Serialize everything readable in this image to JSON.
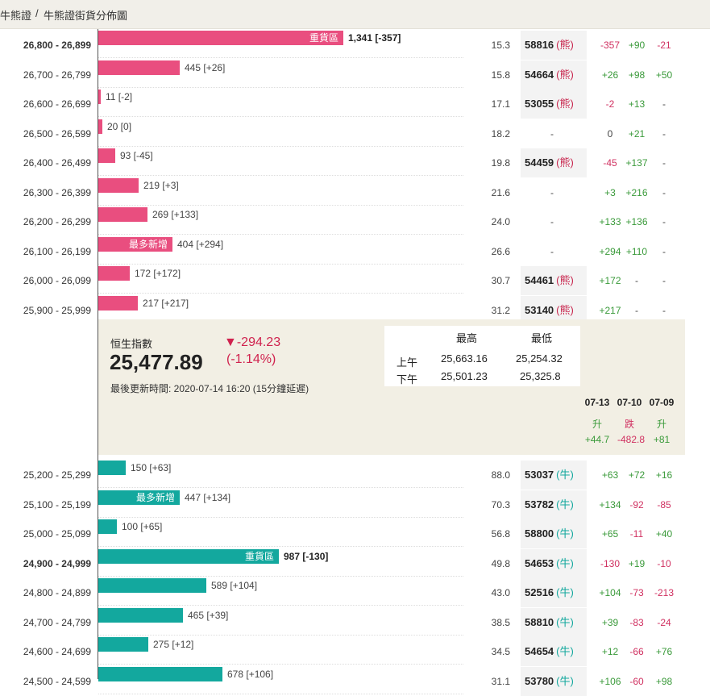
{
  "breadcrumb": {
    "part1": "牛熊證",
    "separator": "/",
    "part2": "牛熊證街貨分佈圖"
  },
  "bear_rows": [
    {
      "range": "26,800 - 26,899",
      "bold": true,
      "bar_label": "重貨區",
      "qty": "1,341 [-357]",
      "qty_bold": true,
      "bar_value": 1341,
      "pct": "15.3",
      "code": "58816",
      "type": "(熊)",
      "d1": "-357",
      "d2": "+90",
      "d3": "-21"
    },
    {
      "range": "26,700 - 26,799",
      "bold": false,
      "bar_label": "",
      "qty": "445 [+26]",
      "qty_bold": false,
      "bar_value": 445,
      "pct": "15.8",
      "code": "54664",
      "type": "(熊)",
      "d1": "+26",
      "d2": "+98",
      "d3": "+50"
    },
    {
      "range": "26,600 - 26,699",
      "bold": false,
      "bar_label": "",
      "qty": "11 [-2]",
      "qty_bold": false,
      "bar_value": 11,
      "pct": "17.1",
      "code": "53055",
      "type": "(熊)",
      "d1": "-2",
      "d2": "+13",
      "d3": "-"
    },
    {
      "range": "26,500 - 26,599",
      "bold": false,
      "bar_label": "",
      "qty": "20 [0]",
      "qty_bold": false,
      "bar_value": 20,
      "pct": "18.2",
      "code": "",
      "type": "",
      "d1": "0",
      "d2": "+21",
      "d3": "-"
    },
    {
      "range": "26,400 - 26,499",
      "bold": false,
      "bar_label": "",
      "qty": "93 [-45]",
      "qty_bold": false,
      "bar_value": 93,
      "pct": "19.8",
      "code": "54459",
      "type": "(熊)",
      "d1": "-45",
      "d2": "+137",
      "d3": "-"
    },
    {
      "range": "26,300 - 26,399",
      "bold": false,
      "bar_label": "",
      "qty": "219 [+3]",
      "qty_bold": false,
      "bar_value": 219,
      "pct": "21.6",
      "code": "",
      "type": "",
      "d1": "+3",
      "d2": "+216",
      "d3": "-"
    },
    {
      "range": "26,200 - 26,299",
      "bold": false,
      "bar_label": "",
      "qty": "269 [+133]",
      "qty_bold": false,
      "bar_value": 269,
      "pct": "24.0",
      "code": "",
      "type": "",
      "d1": "+133",
      "d2": "+136",
      "d3": "-"
    },
    {
      "range": "26,100 - 26,199",
      "bold": false,
      "bar_label": "最多新增",
      "qty": "404 [+294]",
      "qty_bold": false,
      "bar_value": 404,
      "pct": "26.6",
      "code": "",
      "type": "",
      "d1": "+294",
      "d2": "+110",
      "d3": "-"
    },
    {
      "range": "26,000 - 26,099",
      "bold": false,
      "bar_label": "",
      "qty": "172 [+172]",
      "qty_bold": false,
      "bar_value": 172,
      "pct": "30.7",
      "code": "54461",
      "type": "(熊)",
      "d1": "+172",
      "d2": "-",
      "d3": "-"
    },
    {
      "range": "25,900 - 25,999",
      "bold": false,
      "bar_label": "",
      "qty": "217 [+217]",
      "qty_bold": false,
      "bar_value": 217,
      "pct": "31.2",
      "code": "53140",
      "type": "(熊)",
      "d1": "+217",
      "d2": "-",
      "d3": "-"
    }
  ],
  "index_panel": {
    "label": "恒生指數",
    "value": "25,477.89",
    "change": "▼-294.23",
    "change_pct": "(-1.14%)",
    "updated": "最後更新時間: 2020-07-14 16:20 (15分鐘延遲)",
    "hl_header_high": "最高",
    "hl_header_low": "最低",
    "am_label": "上午",
    "am_high": "25,663.16",
    "am_low": "25,254.32",
    "pm_label": "下午",
    "pm_high": "25,501.23",
    "pm_low": "25,325.8",
    "days": [
      {
        "date": "07-13",
        "dir": "升",
        "change": "+44.7",
        "sign": "pos"
      },
      {
        "date": "07-10",
        "dir": "跌",
        "change": "-482.8",
        "sign": "neg"
      },
      {
        "date": "07-09",
        "dir": "升",
        "change": "+81",
        "sign": "pos"
      }
    ]
  },
  "bull_rows": [
    {
      "range": "25,200 - 25,299",
      "bold": false,
      "bar_label": "",
      "qty": "150 [+63]",
      "qty_bold": false,
      "bar_value": 150,
      "pct": "88.0",
      "code": "53037",
      "type": "(牛)",
      "d1": "+63",
      "d2": "+72",
      "d3": "+16"
    },
    {
      "range": "25,100 - 25,199",
      "bold": false,
      "bar_label": "最多新增",
      "qty": "447 [+134]",
      "qty_bold": false,
      "bar_value": 447,
      "pct": "70.3",
      "code": "53782",
      "type": "(牛)",
      "d1": "+134",
      "d2": "-92",
      "d3": "-85"
    },
    {
      "range": "25,000 - 25,099",
      "bold": false,
      "bar_label": "",
      "qty": "100 [+65]",
      "qty_bold": false,
      "bar_value": 100,
      "pct": "56.8",
      "code": "58800",
      "type": "(牛)",
      "d1": "+65",
      "d2": "-11",
      "d3": "+40"
    },
    {
      "range": "24,900 - 24,999",
      "bold": true,
      "bar_label": "重貨區",
      "qty": "987 [-130]",
      "qty_bold": true,
      "bar_value": 987,
      "pct": "49.8",
      "code": "54653",
      "type": "(牛)",
      "d1": "-130",
      "d2": "+19",
      "d3": "-10"
    },
    {
      "range": "24,800 - 24,899",
      "bold": false,
      "bar_label": "",
      "qty": "589 [+104]",
      "qty_bold": false,
      "bar_value": 589,
      "pct": "43.0",
      "code": "52516",
      "type": "(牛)",
      "d1": "+104",
      "d2": "-73",
      "d3": "-213"
    },
    {
      "range": "24,700 - 24,799",
      "bold": false,
      "bar_label": "",
      "qty": "465 [+39]",
      "qty_bold": false,
      "bar_value": 465,
      "pct": "38.5",
      "code": "58810",
      "type": "(牛)",
      "d1": "+39",
      "d2": "-83",
      "d3": "-24"
    },
    {
      "range": "24,600 - 24,699",
      "bold": false,
      "bar_label": "",
      "qty": "275 [+12]",
      "qty_bold": false,
      "bar_value": 275,
      "pct": "34.5",
      "code": "54654",
      "type": "(牛)",
      "d1": "+12",
      "d2": "-66",
      "d3": "+76"
    },
    {
      "range": "24,500 - 24,599",
      "bold": false,
      "bar_label": "",
      "qty": "678 [+106]",
      "qty_bold": false,
      "bar_value": 678,
      "pct": "31.1",
      "code": "53780",
      "type": "(牛)",
      "d1": "+106",
      "d2": "-60",
      "d3": "+98"
    }
  ],
  "colors": {
    "bear": "#e94e7f",
    "bull": "#13a89e",
    "positive": "#3a9a3a",
    "negative": "#d03060",
    "panel_bg": "#f2efe4"
  }
}
